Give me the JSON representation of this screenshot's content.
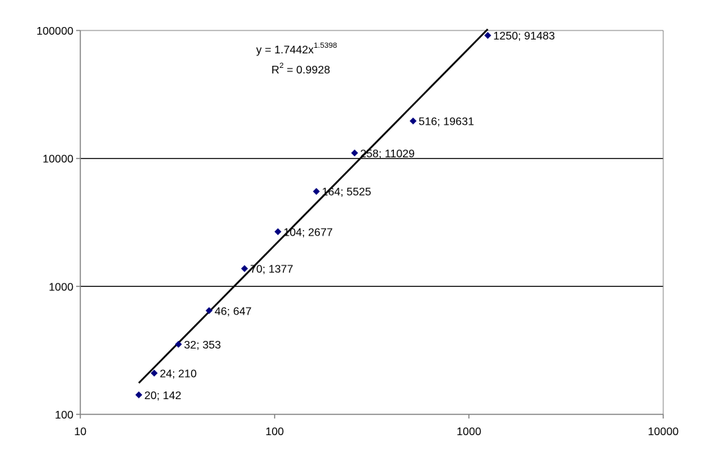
{
  "chart_data": {
    "type": "scatter",
    "x_scale": "log",
    "y_scale": "log",
    "xlim": [
      10,
      10000
    ],
    "ylim": [
      100,
      100000
    ],
    "x_ticks": [
      "10",
      "100",
      "1000",
      "10000"
    ],
    "y_ticks": [
      "100",
      "1000",
      "10000",
      "100000"
    ],
    "grid": "horizontal major",
    "points": [
      {
        "x": 20,
        "y": 142,
        "label": "20; 142"
      },
      {
        "x": 24,
        "y": 210,
        "label": "24; 210"
      },
      {
        "x": 32,
        "y": 353,
        "label": "32; 353"
      },
      {
        "x": 46,
        "y": 647,
        "label": "46; 647"
      },
      {
        "x": 70,
        "y": 1377,
        "label": "70; 1377"
      },
      {
        "x": 104,
        "y": 2677,
        "label": "104; 2677"
      },
      {
        "x": 164,
        "y": 5525,
        "label": "164; 5525"
      },
      {
        "x": 258,
        "y": 11029,
        "label": "258; 11029"
      },
      {
        "x": 516,
        "y": 19631,
        "label": "516; 19631"
      },
      {
        "x": 1250,
        "y": 91483,
        "label": "1250; 91483"
      }
    ],
    "trendline": {
      "type": "power",
      "coefficient": 1.7442,
      "exponent": 1.5398,
      "x_range": [
        20,
        1250
      ],
      "equation_main": "y = 1.7442x",
      "equation_exponent": "1.5398",
      "r2_prefix": "R",
      "r2_sup": "2",
      "r2_value": " = 0.9928"
    },
    "colors": {
      "marker": "#000080",
      "trendline": "#000000",
      "gridline": "#000000",
      "axis": "#808080"
    }
  }
}
